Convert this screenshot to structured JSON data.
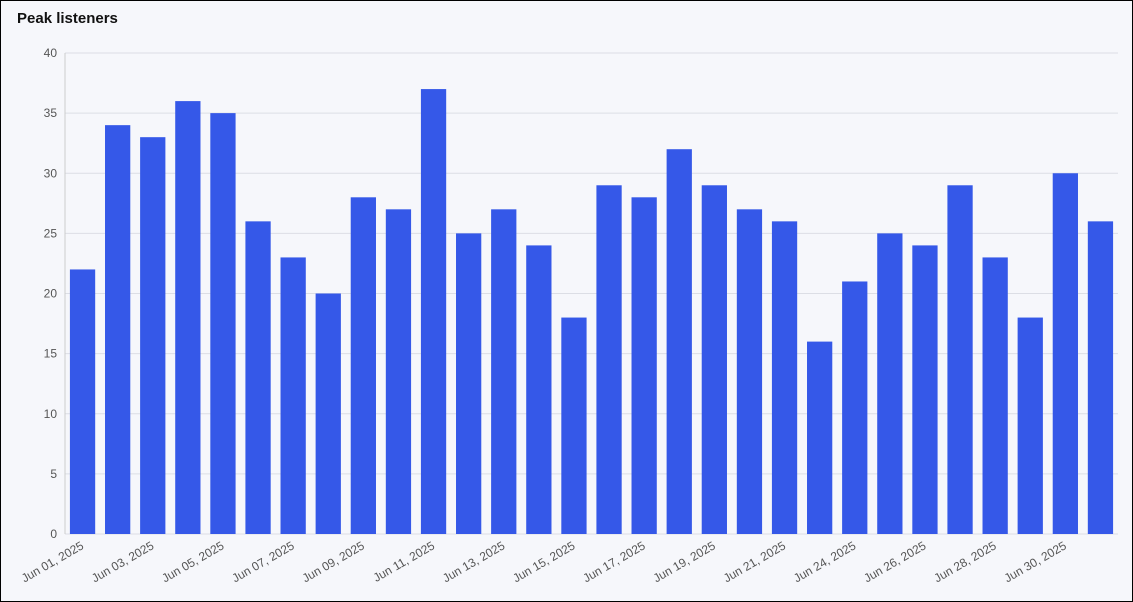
{
  "chart_data": {
    "type": "bar",
    "title": "Peak listeners",
    "categories": [
      "Jun 01, 2025",
      null,
      "Jun 03, 2025",
      null,
      "Jun 05, 2025",
      null,
      "Jun 07, 2025",
      null,
      "Jun 09, 2025",
      null,
      "Jun 11, 2025",
      null,
      "Jun 13, 2025",
      null,
      "Jun 15, 2025",
      null,
      "Jun 17, 2025",
      null,
      "Jun 19, 2025",
      null,
      "Jun 21, 2025",
      null,
      "Jun 24, 2025",
      null,
      "Jun 26, 2025",
      null,
      "Jun 28, 2025",
      null,
      "Jun 30, 2025",
      null
    ],
    "values": [
      22,
      34,
      33,
      36,
      35,
      26,
      23,
      20,
      28,
      27,
      37,
      25,
      27,
      24,
      18,
      29,
      28,
      32,
      29,
      27,
      26,
      16,
      21,
      25,
      24,
      29,
      23,
      18,
      30,
      26
    ],
    "color": "#3558e8",
    "ylim": [
      0,
      40
    ],
    "yticks": [
      0,
      5,
      10,
      15,
      20,
      25,
      30,
      35,
      40
    ],
    "grid": true
  }
}
